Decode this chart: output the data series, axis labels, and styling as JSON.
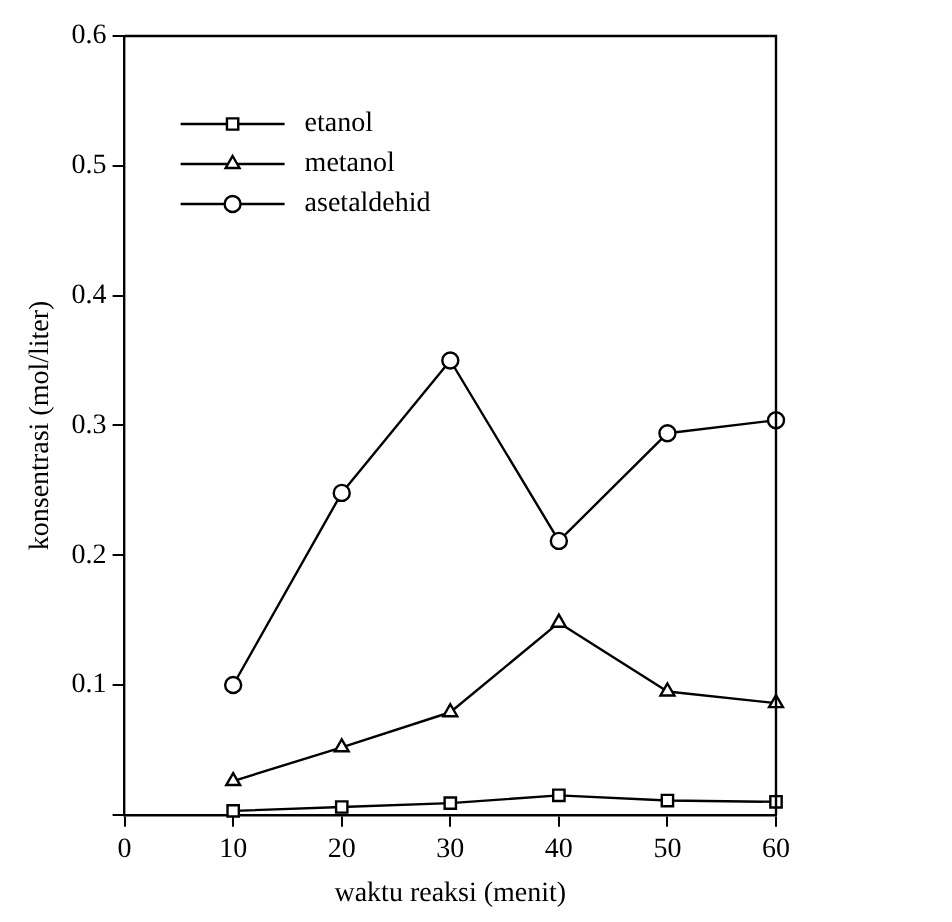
{
  "chart_data": {
    "type": "line",
    "xlabel": "waktu reaksi (menit)",
    "ylabel": "konsentrasi (mol/liter)",
    "x": [
      10,
      20,
      30,
      40,
      50,
      60
    ],
    "series": [
      {
        "name": "etanol",
        "color": "#000000",
        "marker": "square",
        "values": [
          0.003,
          0.006,
          0.009,
          0.015,
          0.011,
          0.01
        ]
      },
      {
        "name": "metanol",
        "color": "#000000",
        "marker": "triangle",
        "values": [
          0.026,
          0.052,
          0.079,
          0.148,
          0.095,
          0.086
        ]
      },
      {
        "name": "asetaldehid",
        "color": "#000000",
        "marker": "circle",
        "values": [
          0.1,
          0.248,
          0.35,
          0.211,
          0.294,
          0.304
        ]
      }
    ],
    "xlim": [
      0,
      60
    ],
    "xticks": [
      0,
      10,
      20,
      30,
      40,
      50,
      60
    ],
    "ylim": [
      0,
      0.6
    ],
    "yticks": [
      {
        "value": 0,
        "label": null
      },
      0.1,
      0.2,
      0.3,
      0.4,
      0.5,
      0.6
    ],
    "grid": false,
    "legend": "top left",
    "line_style": "solid"
  }
}
